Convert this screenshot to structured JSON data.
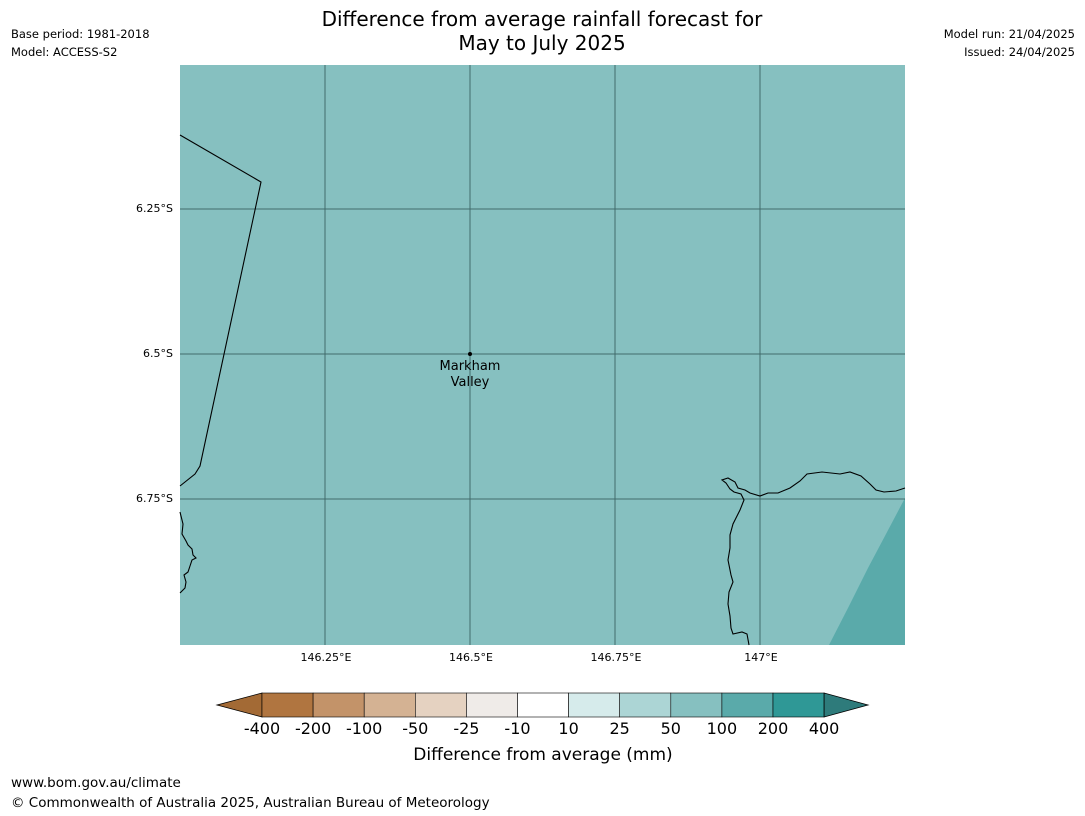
{
  "header": {
    "title_line1": "Difference from average rainfall forecast for",
    "title_line2": "May to July 2025",
    "base_period": "Base period: 1981-2018",
    "model": "Model: ACCESS-S2",
    "model_run": "Model run: 21/04/2025",
    "issued": "Issued: 24/04/2025"
  },
  "map": {
    "background_color": "#86c0c0",
    "higher_rain_color": "#5aaaaa",
    "lat_labels": [
      "6.25°S",
      "6.5°S",
      "6.75°S"
    ],
    "lon_labels": [
      "146.25°E",
      "146.5°E",
      "146.75°E",
      "147°E"
    ],
    "place": {
      "line1": "Markham",
      "line2": "Valley"
    }
  },
  "legend": {
    "ticks": [
      "-400",
      "-200",
      "-100",
      "-50",
      "-25",
      "-10",
      "10",
      "25",
      "50",
      "100",
      "200",
      "400"
    ],
    "colors": [
      "#a36a35",
      "#b07540",
      "#c39369",
      "#d4b293",
      "#e5d2c1",
      "#efebe8",
      "#ffffff",
      "#d6ebeb",
      "#acd5d5",
      "#86c0c0",
      "#5aaaaa",
      "#2f9896",
      "#2e7b7b"
    ],
    "label": "Difference from average (mm)"
  },
  "footer": {
    "url": "www.bom.gov.au/climate",
    "copyright": "© Commonwealth of Australia 2025, Australian Bureau of Meteorology"
  }
}
